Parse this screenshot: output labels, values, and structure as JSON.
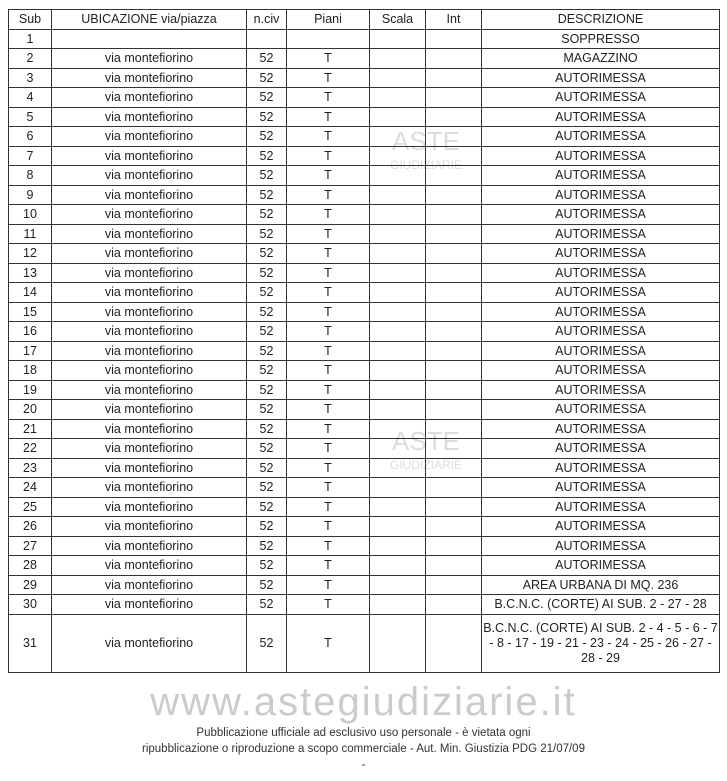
{
  "headers": [
    "Sub",
    "UBICAZIONE via/piazza",
    "n.civ",
    "Piani",
    "Scala",
    "Int",
    "DESCRIZIONE"
  ],
  "rows": [
    [
      "1",
      "",
      "",
      "",
      "",
      "",
      "SOPPRESSO"
    ],
    [
      "2",
      "via montefiorino",
      "52",
      "T",
      "",
      "",
      "MAGAZZINO"
    ],
    [
      "3",
      "via montefiorino",
      "52",
      "T",
      "",
      "",
      "AUTORIMESSA"
    ],
    [
      "4",
      "via montefiorino",
      "52",
      "T",
      "",
      "",
      "AUTORIMESSA"
    ],
    [
      "5",
      "via montefiorino",
      "52",
      "T",
      "",
      "",
      "AUTORIMESSA"
    ],
    [
      "6",
      "via montefiorino",
      "52",
      "T",
      "",
      "",
      "AUTORIMESSA"
    ],
    [
      "7",
      "via montefiorino",
      "52",
      "T",
      "",
      "",
      "AUTORIMESSA"
    ],
    [
      "8",
      "via montefiorino",
      "52",
      "T",
      "",
      "",
      "AUTORIMESSA"
    ],
    [
      "9",
      "via montefiorino",
      "52",
      "T",
      "",
      "",
      "AUTORIMESSA"
    ],
    [
      "10",
      "via montefiorino",
      "52",
      "T",
      "",
      "",
      "AUTORIMESSA"
    ],
    [
      "11",
      "via montefiorino",
      "52",
      "T",
      "",
      "",
      "AUTORIMESSA"
    ],
    [
      "12",
      "via montefiorino",
      "52",
      "T",
      "",
      "",
      "AUTORIMESSA"
    ],
    [
      "13",
      "via montefiorino",
      "52",
      "T",
      "",
      "",
      "AUTORIMESSA"
    ],
    [
      "14",
      "via montefiorino",
      "52",
      "T",
      "",
      "",
      "AUTORIMESSA"
    ],
    [
      "15",
      "via montefiorino",
      "52",
      "T",
      "",
      "",
      "AUTORIMESSA"
    ],
    [
      "16",
      "via montefiorino",
      "52",
      "T",
      "",
      "",
      "AUTORIMESSA"
    ],
    [
      "17",
      "via montefiorino",
      "52",
      "T",
      "",
      "",
      "AUTORIMESSA"
    ],
    [
      "18",
      "via montefiorino",
      "52",
      "T",
      "",
      "",
      "AUTORIMESSA"
    ],
    [
      "19",
      "via montefiorino",
      "52",
      "T",
      "",
      "",
      "AUTORIMESSA"
    ],
    [
      "20",
      "via montefiorino",
      "52",
      "T",
      "",
      "",
      "AUTORIMESSA"
    ],
    [
      "21",
      "via montefiorino",
      "52",
      "T",
      "",
      "",
      "AUTORIMESSA"
    ],
    [
      "22",
      "via montefiorino",
      "52",
      "T",
      "",
      "",
      "AUTORIMESSA"
    ],
    [
      "23",
      "via montefiorino",
      "52",
      "T",
      "",
      "",
      "AUTORIMESSA"
    ],
    [
      "24",
      "via montefiorino",
      "52",
      "T",
      "",
      "",
      "AUTORIMESSA"
    ],
    [
      "25",
      "via montefiorino",
      "52",
      "T",
      "",
      "",
      "AUTORIMESSA"
    ],
    [
      "26",
      "via montefiorino",
      "52",
      "T",
      "",
      "",
      "AUTORIMESSA"
    ],
    [
      "27",
      "via montefiorino",
      "52",
      "T",
      "",
      "",
      "AUTORIMESSA"
    ],
    [
      "28",
      "via montefiorino",
      "52",
      "T",
      "",
      "",
      "AUTORIMESSA"
    ],
    [
      "29",
      "via montefiorino",
      "52",
      "T",
      "",
      "",
      "AREA URBANA DI MQ. 236"
    ],
    [
      "30",
      "via montefiorino",
      "52",
      "T",
      "",
      "",
      "B.C.N.C. (CORTE) AI SUB. 2 - 27 - 28"
    ],
    [
      "31",
      "via montefiorino",
      "52",
      "T",
      "",
      "",
      "B.C.N.C. (CORTE) AI SUB. 2 - 4 - 5 - 6 - 7 - 8 - 17 - 19 - 21 - 23 - 24 - 25 - 26 - 27 - 28 - 29"
    ]
  ],
  "watermark": {
    "logo": "ASTE",
    "logo_sub": "GIUDIZIARIE",
    "site": "www.astegiudiziarie.it",
    "notice_line1": "Pubblicazione ufficiale ad esclusivo uso personale - è vietata ogni",
    "notice_line2": "ripubblicazione o riproduzione a scopo commerciale - Aut. Min. Giustizia PDG 21/07/09",
    "notice_line3": "-"
  }
}
